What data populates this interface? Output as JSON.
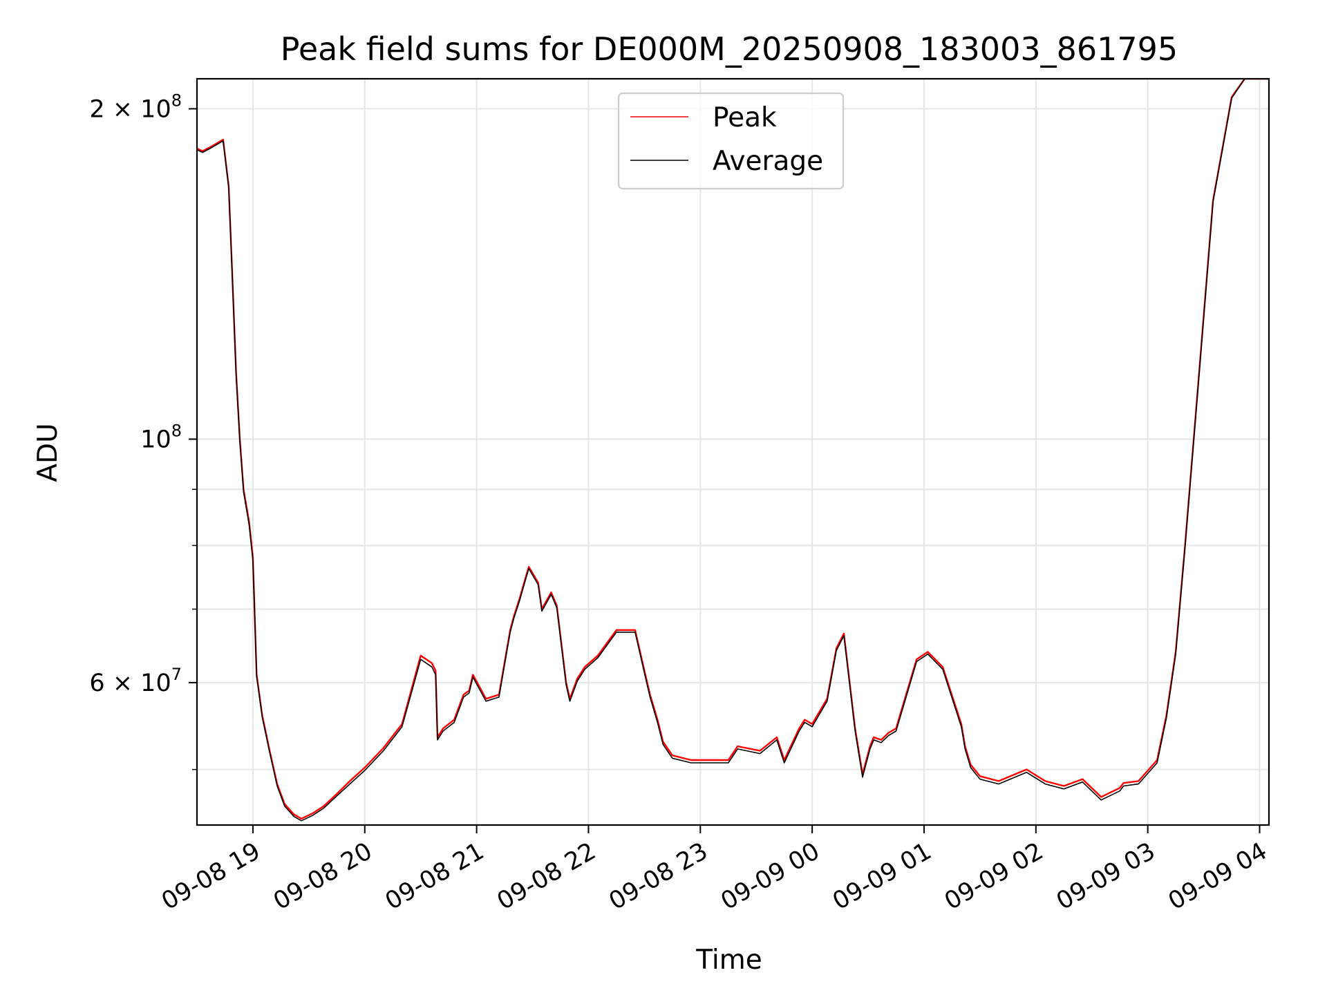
{
  "chart_data": {
    "type": "line",
    "title": "Peak field sums for DE000M_20250908_183003_861795",
    "xlabel": "Time",
    "ylabel": "ADU",
    "yscale": "log",
    "xlim": [
      "2025-09-08 18:30",
      "2025-09-09 04:05"
    ],
    "ylim": [
      44500000,
      213000000
    ],
    "grid": true,
    "legend_position": "upper center",
    "x_ticks": [
      "09-08 19",
      "09-08 20",
      "09-08 21",
      "09-08 22",
      "09-08 23",
      "09-09 00",
      "09-09 01",
      "09-09 02",
      "09-09 03",
      "09-09 04"
    ],
    "y_ticks": [
      {
        "value": 200000000,
        "mantissa": "2",
        "exponent": "8"
      },
      {
        "value": 100000000,
        "mantissa": "",
        "exponent": "8"
      },
      {
        "value": 60000000,
        "mantissa": "6",
        "exponent": "7"
      }
    ],
    "y_minor_ticks": [
      50000000,
      70000000,
      80000000,
      90000000
    ],
    "x_time": [
      "2025-09-08 18:30",
      "2025-09-08 18:33",
      "2025-09-08 18:37",
      "2025-09-08 18:44",
      "2025-09-08 18:47",
      "2025-09-08 18:49",
      "2025-09-08 18:51",
      "2025-09-08 18:53",
      "2025-09-08 18:55",
      "2025-09-08 18:58",
      "2025-09-08 19:00",
      "2025-09-08 19:02",
      "2025-09-08 19:05",
      "2025-09-08 19:09",
      "2025-09-08 19:13",
      "2025-09-08 19:17",
      "2025-09-08 19:22",
      "2025-09-08 19:26",
      "2025-09-08 19:32",
      "2025-09-08 19:38",
      "2025-09-08 19:45",
      "2025-09-08 19:52",
      "2025-09-08 20:00",
      "2025-09-08 20:10",
      "2025-09-08 20:20",
      "2025-09-08 20:30",
      "2025-09-08 20:36",
      "2025-09-08 20:38",
      "2025-09-08 20:39",
      "2025-09-08 20:42",
      "2025-09-08 20:48",
      "2025-09-08 20:53",
      "2025-09-08 20:56",
      "2025-09-08 20:58",
      "2025-09-08 21:05",
      "2025-09-08 21:12",
      "2025-09-08 21:18",
      "2025-09-08 21:20",
      "2025-09-08 21:23",
      "2025-09-08 21:26",
      "2025-09-08 21:28",
      "2025-09-08 21:33",
      "2025-09-08 21:35",
      "2025-09-08 21:40",
      "2025-09-08 21:43",
      "2025-09-08 21:48",
      "2025-09-08 21:50",
      "2025-09-08 21:54",
      "2025-09-08 21:58",
      "2025-09-08 22:05",
      "2025-09-08 22:15",
      "2025-09-08 22:25",
      "2025-09-08 22:30",
      "2025-09-08 22:33",
      "2025-09-08 22:37",
      "2025-09-08 22:40",
      "2025-09-08 22:45",
      "2025-09-08 22:55",
      "2025-09-08 23:15",
      "2025-09-08 23:20",
      "2025-09-08 23:32",
      "2025-09-08 23:41",
      "2025-09-08 23:45",
      "2025-09-08 23:53",
      "2025-09-08 23:56",
      "2025-09-09 00:00",
      "2025-09-09 00:08",
      "2025-09-09 00:13",
      "2025-09-09 00:17",
      "2025-09-09 00:23",
      "2025-09-09 00:27",
      "2025-09-09 00:31",
      "2025-09-09 00:33",
      "2025-09-09 00:37",
      "2025-09-09 00:41",
      "2025-09-09 00:45",
      "2025-09-09 00:56",
      "2025-09-09 01:02",
      "2025-09-09 01:10",
      "2025-09-09 01:20",
      "2025-09-09 01:22",
      "2025-09-09 01:25",
      "2025-09-09 01:30",
      "2025-09-09 01:40",
      "2025-09-09 01:55",
      "2025-09-09 02:05",
      "2025-09-09 02:15",
      "2025-09-09 02:25",
      "2025-09-09 02:35",
      "2025-09-09 02:45",
      "2025-09-09 02:47",
      "2025-09-09 02:55",
      "2025-09-09 03:05",
      "2025-09-09 03:10",
      "2025-09-09 03:15",
      "2025-09-09 03:20",
      "2025-09-09 03:27",
      "2025-09-09 03:35",
      "2025-09-09 03:45",
      "2025-09-09 03:52",
      "2025-09-09 03:58",
      "2025-09-09 04:05"
    ],
    "series": [
      {
        "name": "Peak",
        "color": "#ff0000",
        "values": [
          184000000,
          183000000,
          184500000,
          187500000,
          170000000,
          140000000,
          115000000,
          100000000,
          90000000,
          84000000,
          78000000,
          61000000,
          56000000,
          52000000,
          48500000,
          46500000,
          45500000,
          45100000,
          45600000,
          46300000,
          47500000,
          48800000,
          50200000,
          52300000,
          55000000,
          63500000,
          62500000,
          61500000,
          53500000,
          54500000,
          55500000,
          58500000,
          59000000,
          61000000,
          58000000,
          58500000,
          67000000,
          69000000,
          71500000,
          74500000,
          76500000,
          74000000,
          70000000,
          72500000,
          70500000,
          60000000,
          58000000,
          60500000,
          62000000,
          63500000,
          67000000,
          67000000,
          61500000,
          58500000,
          55500000,
          53000000,
          51500000,
          51000000,
          51000000,
          52500000,
          52000000,
          53500000,
          51000000,
          54500000,
          55500000,
          55000000,
          58000000,
          64500000,
          66500000,
          54500000,
          49500000,
          52500000,
          53500000,
          53200000,
          54000000,
          54500000,
          63000000,
          64000000,
          62000000,
          55000000,
          52500000,
          50500000,
          49300000,
          48800000,
          50000000,
          48800000,
          48300000,
          49000000,
          47200000,
          48100000,
          48600000,
          48800000,
          51000000,
          56000000,
          64000000,
          80000000,
          112000000,
          165000000,
          205000000,
          213000000,
          213000000,
          213000000
        ]
      },
      {
        "name": "Average",
        "color": "#000000",
        "values": [
          183500000,
          182500000,
          184000000,
          187000000,
          169500000,
          139500000,
          114500000,
          99500000,
          89500000,
          83500000,
          77500000,
          60800000,
          55800000,
          51800000,
          48300000,
          46300000,
          45300000,
          44900000,
          45400000,
          46100000,
          47300000,
          48500000,
          49900000,
          52000000,
          54700000,
          63000000,
          62000000,
          61000000,
          53200000,
          54200000,
          55200000,
          58200000,
          58700000,
          60700000,
          57700000,
          58200000,
          66700000,
          68700000,
          71200000,
          74200000,
          76200000,
          73700000,
          69700000,
          72200000,
          70200000,
          59700000,
          57700000,
          60200000,
          61700000,
          63200000,
          66700000,
          66700000,
          61200000,
          58200000,
          55200000,
          52700000,
          51200000,
          50700000,
          50700000,
          52200000,
          51700000,
          53200000,
          50700000,
          54200000,
          55200000,
          54700000,
          57700000,
          64200000,
          66200000,
          54200000,
          49200000,
          52200000,
          53200000,
          52900000,
          53700000,
          54200000,
          62700000,
          63700000,
          61700000,
          54700000,
          52200000,
          50200000,
          49000000,
          48500000,
          49700000,
          48500000,
          48000000,
          48700000,
          46900000,
          47800000,
          48300000,
          48500000,
          50700000,
          55700000,
          63700000,
          79700000,
          111500000,
          164500000,
          204500000,
          213000000,
          213000000,
          213000000
        ]
      }
    ]
  }
}
